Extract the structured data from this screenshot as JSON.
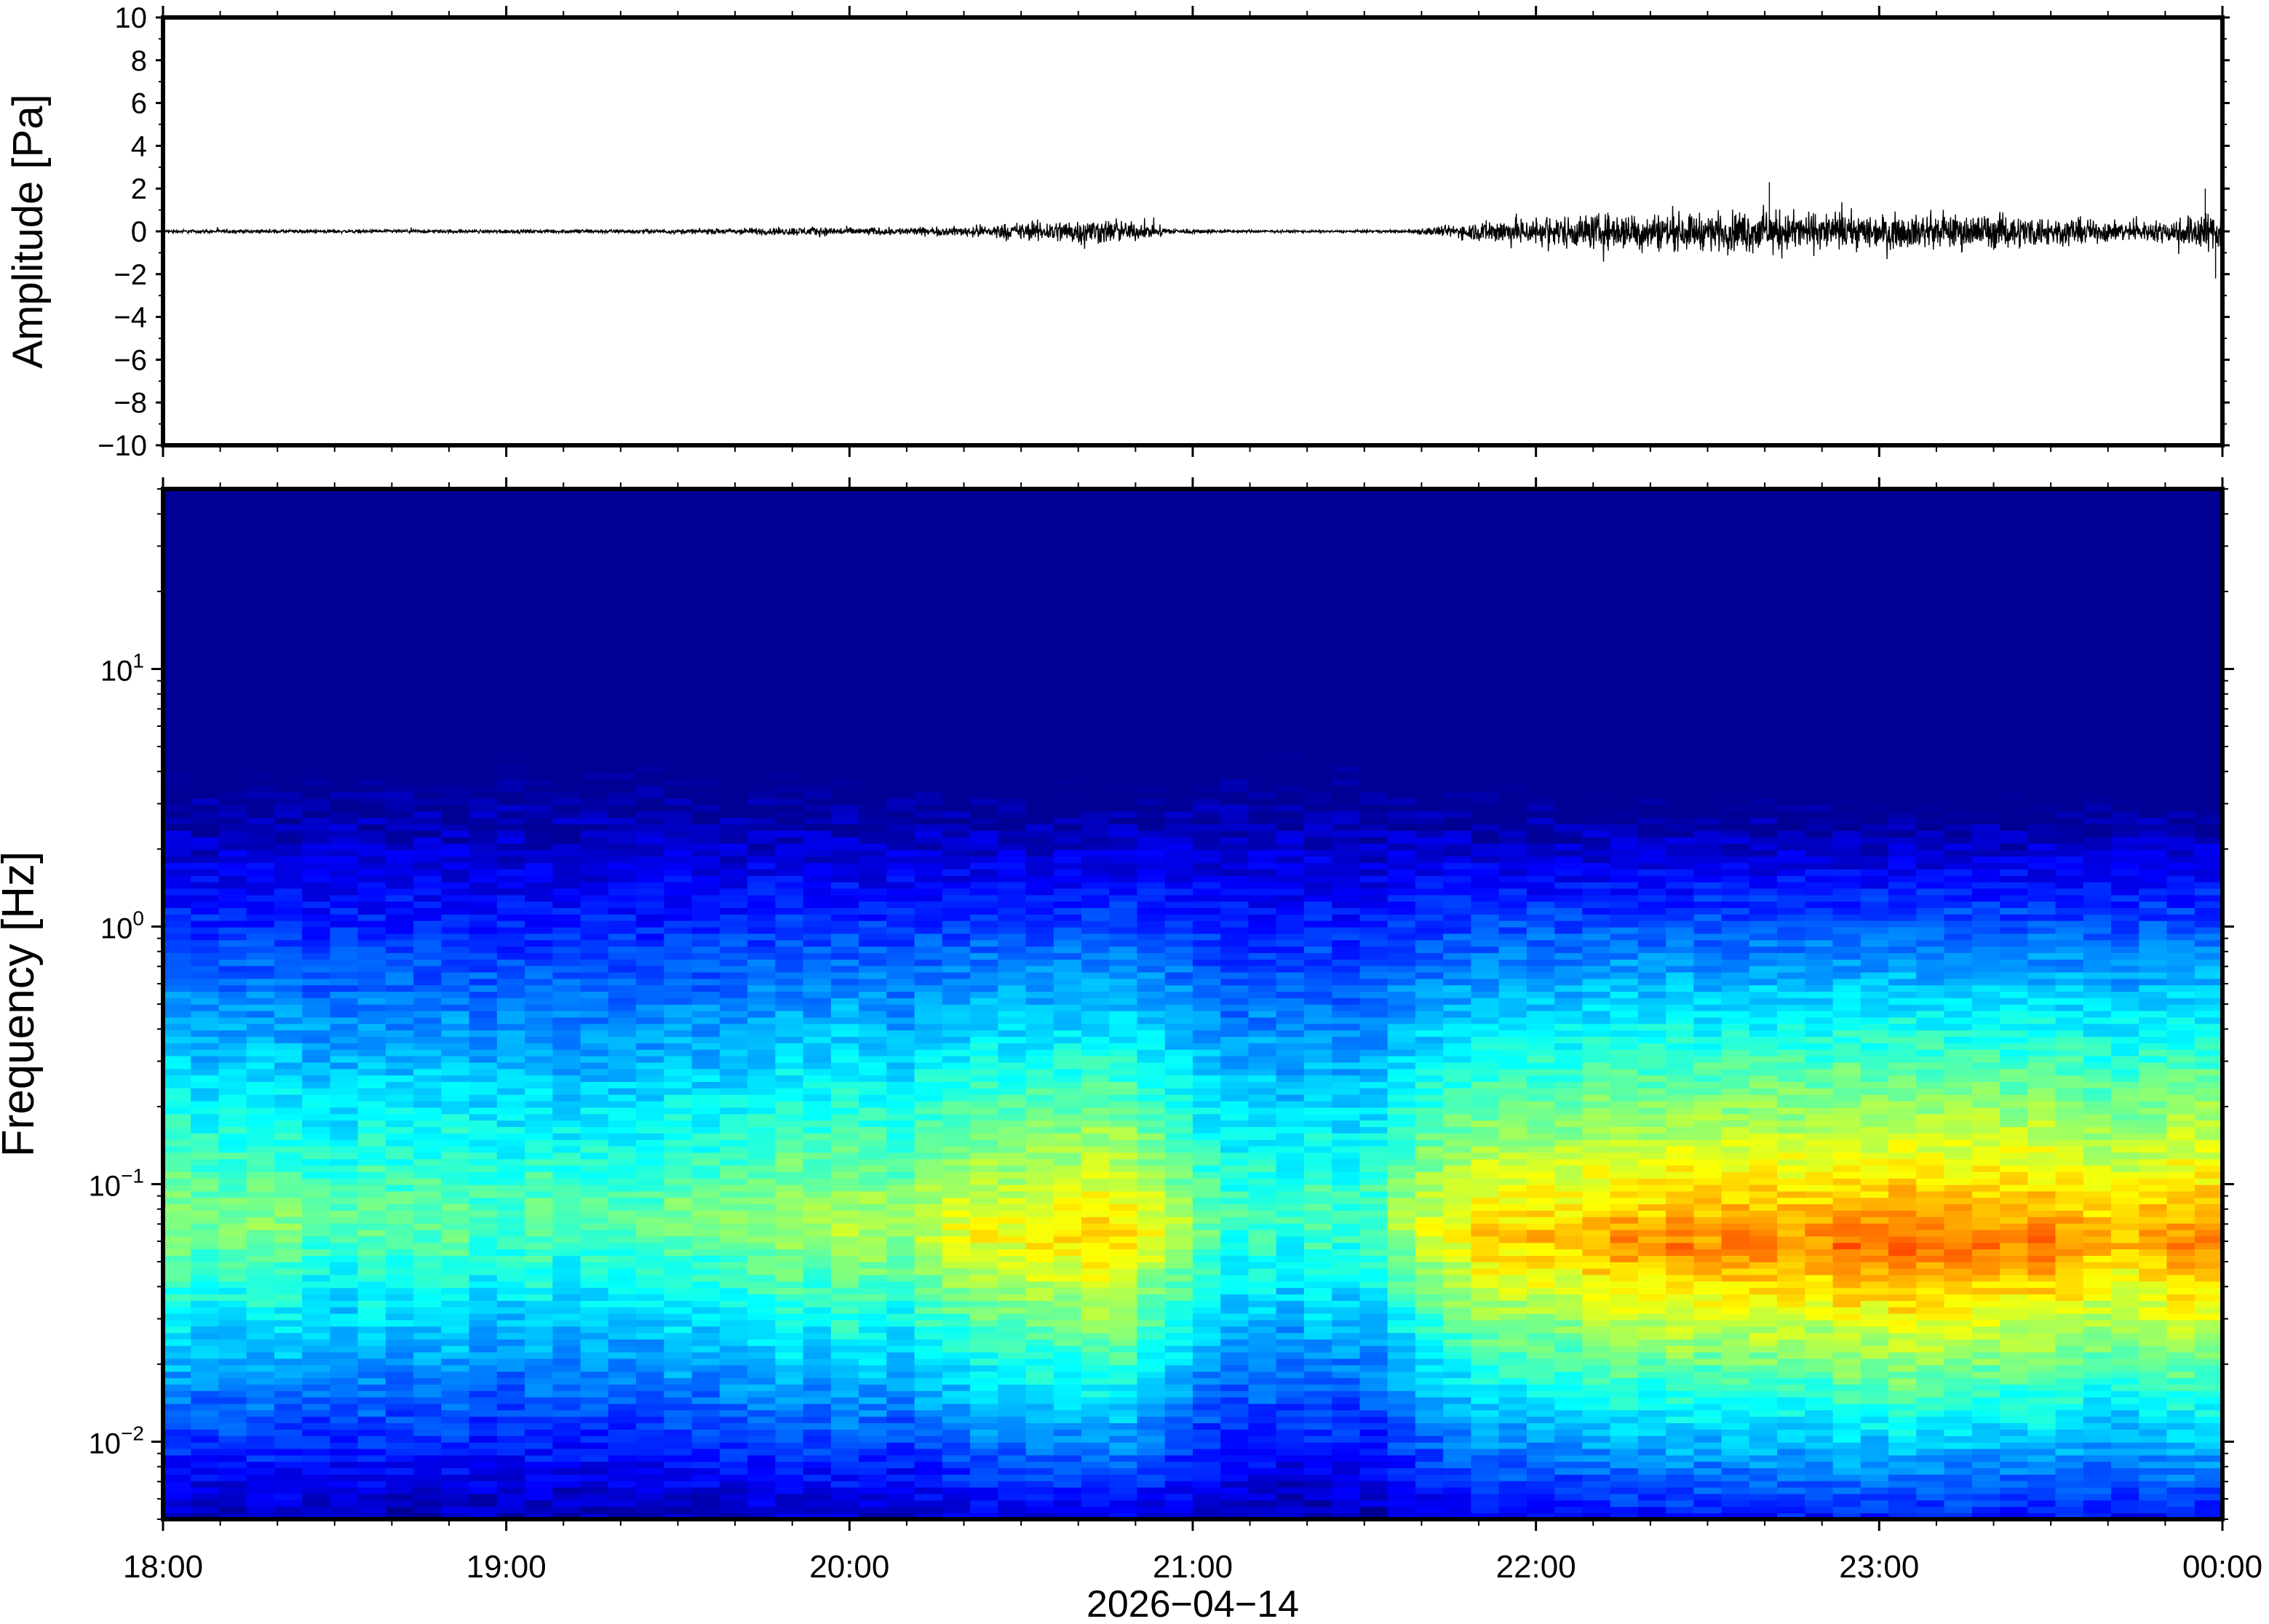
{
  "chart_data": [
    {
      "type": "line",
      "panel": "waveform",
      "ylabel": "Amplitude [Pa]",
      "ylim": [
        -10,
        10
      ],
      "yticks": [
        10,
        8,
        6,
        4,
        2,
        0,
        -2,
        -4,
        -6,
        -8,
        -10
      ],
      "ytick_labels": [
        "10",
        "8",
        "6",
        "4",
        "2",
        "0",
        "−2",
        "−4",
        "−6",
        "−8",
        "−10"
      ],
      "xlim_hours": [
        18,
        24
      ],
      "envelope": {
        "x_hours": [
          18.0,
          18.5,
          19.0,
          19.5,
          19.9,
          20.1,
          20.3,
          20.5,
          20.7,
          20.8,
          20.95,
          21.1,
          21.4,
          21.6,
          21.75,
          21.9,
          22.1,
          22.3,
          22.5,
          22.65,
          22.75,
          22.9,
          23.1,
          23.3,
          23.5,
          23.75,
          23.85,
          23.95,
          24.0
        ],
        "amplitude": [
          0.12,
          0.12,
          0.12,
          0.15,
          0.3,
          0.25,
          0.3,
          0.6,
          0.9,
          0.7,
          0.2,
          0.1,
          0.08,
          0.1,
          0.4,
          0.9,
          1.1,
          1.3,
          1.2,
          1.5,
          1.3,
          1.2,
          1.1,
          1.2,
          1.0,
          0.6,
          0.8,
          1.4,
          1.2
        ]
      },
      "peaks": [
        {
          "x_hour": 22.68,
          "y": 2.3
        },
        {
          "x_hour": 23.95,
          "y": 2.0
        },
        {
          "x_hour": 23.98,
          "y": -2.2
        }
      ],
      "color": "#000000"
    },
    {
      "type": "heatmap",
      "panel": "spectrogram",
      "ylabel": "Frequency [Hz]",
      "yscale": "log",
      "ylim_hz": [
        0.005,
        50
      ],
      "yticks_hz": [
        10,
        1,
        0.1,
        0.01
      ],
      "ytick_labels": [
        {
          "base": "10",
          "exp": "1"
        },
        {
          "base": "10",
          "exp": "0"
        },
        {
          "base": "10",
          "exp": "−1"
        },
        {
          "base": "10",
          "exp": "−2"
        }
      ],
      "xlabel": "2026−04−14",
      "xlim_hours": [
        18,
        24
      ],
      "xtick_hours": [
        18,
        19,
        20,
        21,
        22,
        23,
        24
      ],
      "xtick_labels": [
        "18:00",
        "19:00",
        "20:00",
        "21:00",
        "22:00",
        "23:00",
        "00:00"
      ],
      "colormap": "jet",
      "activity_profile": {
        "x_hours": [
          18.0,
          18.3,
          18.6,
          18.9,
          19.2,
          19.4,
          19.6,
          19.8,
          20.0,
          20.15,
          20.3,
          20.5,
          20.7,
          20.85,
          21.0,
          21.15,
          21.35,
          21.55,
          21.65,
          21.8,
          22.0,
          22.3,
          22.6,
          22.9,
          23.1,
          23.3,
          23.5,
          23.7,
          23.85,
          24.0
        ],
        "energy": [
          0.52,
          0.45,
          0.42,
          0.4,
          0.38,
          0.4,
          0.46,
          0.52,
          0.58,
          0.5,
          0.62,
          0.7,
          0.82,
          0.74,
          0.45,
          0.36,
          0.36,
          0.4,
          0.62,
          0.74,
          0.8,
          0.88,
          0.92,
          0.95,
          1.0,
          0.97,
          0.92,
          0.82,
          0.88,
          0.95
        ]
      }
    }
  ]
}
